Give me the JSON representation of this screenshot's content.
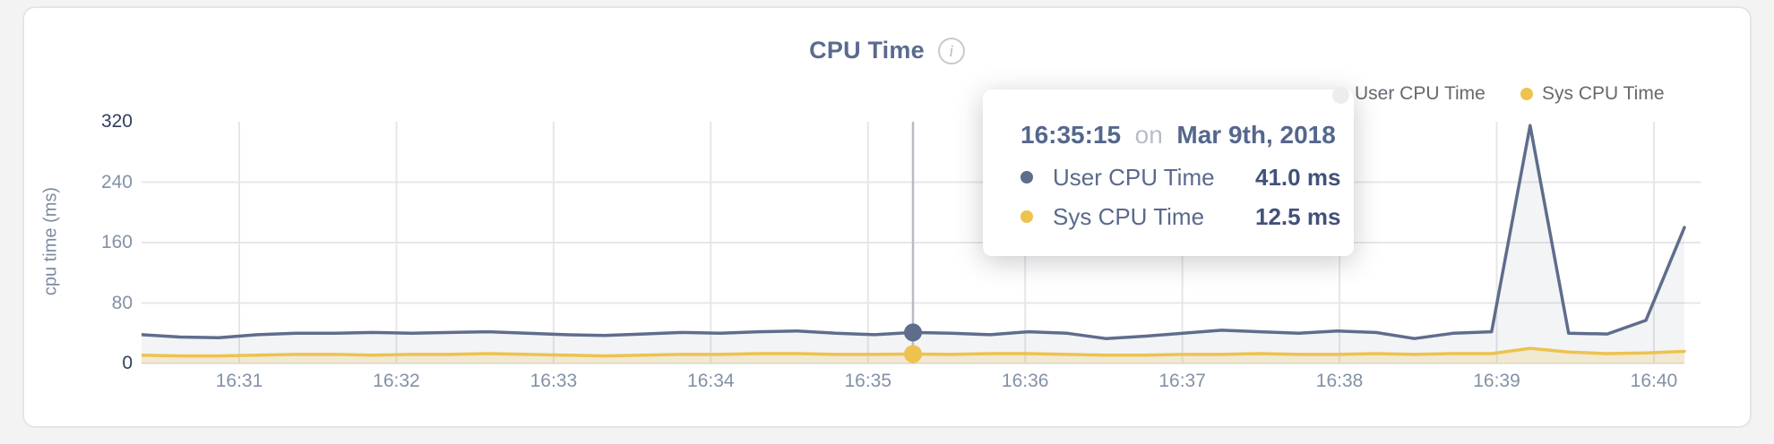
{
  "header": {
    "title": "CPU Time",
    "info_icon_glyph": "i"
  },
  "legend": {
    "items": [
      {
        "label": "User CPU Time",
        "color": "#5f6d8c",
        "obscured_color": "#ededef"
      },
      {
        "label": "Sys CPU Time",
        "color": "#edc24f"
      }
    ]
  },
  "tooltip": {
    "time": "16:35:15",
    "connector": "on",
    "date": "Mar 9th, 2018",
    "point_index": 20,
    "rows": [
      {
        "name": "User CPU Time",
        "value": "41.0 ms",
        "color": "#5f6d8c"
      },
      {
        "name": "Sys CPU Time",
        "value": "12.5 ms",
        "color": "#edc24f"
      }
    ]
  },
  "chart_data": {
    "type": "area",
    "title": "CPU Time",
    "xlabel": "",
    "ylabel": "cpu time (ms)",
    "ylim": [
      0,
      320
    ],
    "grid": true,
    "legend_position": "top-right",
    "grid_color": "#e7e7e9",
    "hover_line_color": "#b8bcc2",
    "y_ticks": [
      {
        "label": "0",
        "value": 0,
        "strong": true
      },
      {
        "label": "80",
        "value": 80,
        "strong": false
      },
      {
        "label": "160",
        "value": 160,
        "strong": false
      },
      {
        "label": "240",
        "value": 240,
        "strong": false
      },
      {
        "label": "320",
        "value": 320,
        "strong": true
      }
    ],
    "y_grid_values": [
      80,
      160,
      240
    ],
    "x_tick_labels": [
      "16:31",
      "16:32",
      "16:33",
      "16:34",
      "16:35",
      "16:36",
      "16:37",
      "16:38",
      "16:39",
      "16:40"
    ],
    "x_times": [
      "16:30:15",
      "16:30:30",
      "16:30:45",
      "16:31:00",
      "16:31:15",
      "16:31:30",
      "16:31:45",
      "16:32:00",
      "16:32:15",
      "16:32:30",
      "16:32:45",
      "16:33:00",
      "16:33:15",
      "16:33:30",
      "16:33:45",
      "16:34:00",
      "16:34:15",
      "16:34:30",
      "16:34:45",
      "16:35:00",
      "16:35:15",
      "16:35:30",
      "16:35:45",
      "16:36:00",
      "16:36:15",
      "16:36:30",
      "16:36:45",
      "16:37:00",
      "16:37:15",
      "16:37:30",
      "16:37:45",
      "16:38:00",
      "16:38:15",
      "16:38:30",
      "16:38:45",
      "16:39:00",
      "16:39:15",
      "16:39:30",
      "16:39:45",
      "16:40:00",
      "16:40:15"
    ],
    "series": [
      {
        "name": "User CPU Time",
        "color": "#5f6d8c",
        "fill": "rgba(95,109,140,0.08)",
        "values": [
          38,
          35,
          34,
          38,
          40,
          40,
          41,
          40,
          41,
          42,
          40,
          38,
          37,
          39,
          41,
          40,
          42,
          43,
          40,
          38,
          41,
          40,
          38,
          42,
          40,
          33,
          36,
          40,
          44,
          42,
          40,
          43,
          41,
          33,
          40,
          42,
          315,
          40,
          39,
          57,
          180
        ]
      },
      {
        "name": "Sys CPU Time",
        "color": "#edc24f",
        "fill": "rgba(237,194,79,0.22)",
        "values": [
          11,
          10,
          10,
          11,
          12,
          12,
          11,
          12,
          12,
          13,
          12,
          11,
          10,
          11,
          12,
          12,
          13,
          13,
          12,
          12,
          12.5,
          12,
          13,
          13,
          12,
          11,
          11,
          12,
          12,
          13,
          12,
          12,
          13,
          12,
          13,
          13,
          20,
          15,
          13,
          14,
          16
        ]
      }
    ]
  }
}
